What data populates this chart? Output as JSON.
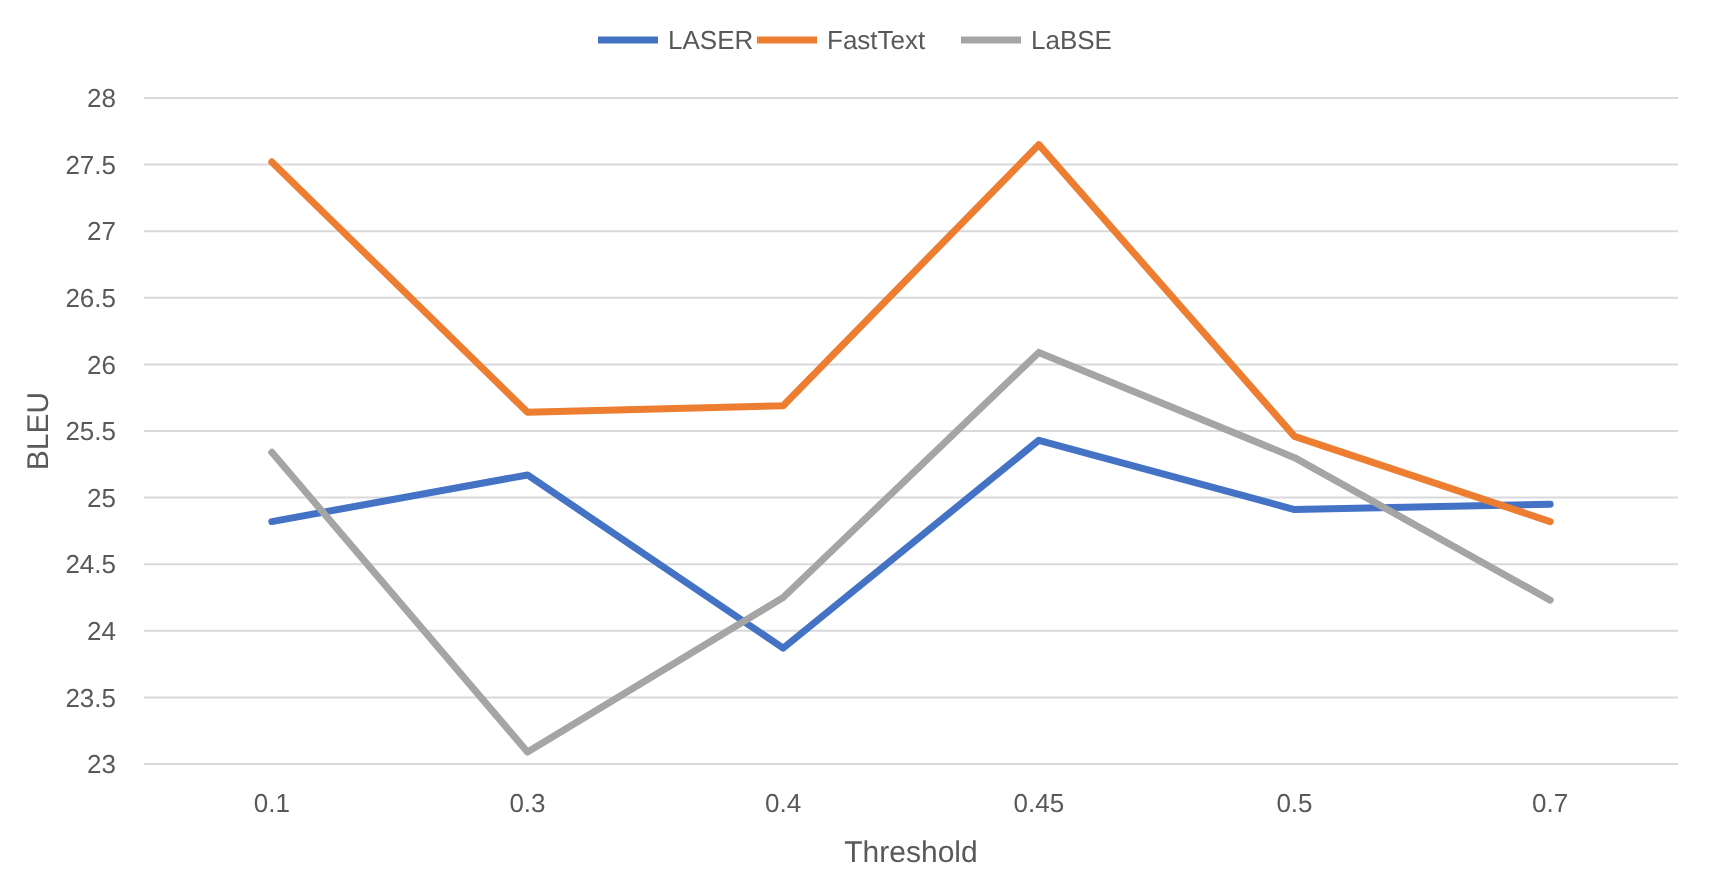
{
  "chart_data": {
    "type": "line",
    "xlabel": "Threshold",
    "ylabel": "BLEU",
    "categories": [
      "0.1",
      "0.3",
      "0.4",
      "0.45",
      "0.5",
      "0.7"
    ],
    "series": [
      {
        "name": "LASER",
        "color": "#4472c4",
        "values": [
          24.82,
          25.17,
          23.87,
          25.43,
          24.91,
          24.95
        ]
      },
      {
        "name": "FastText",
        "color": "#ed7d31",
        "values": [
          27.52,
          25.64,
          25.69,
          27.65,
          25.46,
          24.82
        ]
      },
      {
        "name": "LaBSE",
        "color": "#a5a5a5",
        "values": [
          25.34,
          23.09,
          24.25,
          26.09,
          25.3,
          24.23
        ]
      }
    ],
    "ylim": [
      23,
      28
    ],
    "yticks": [
      23,
      23.5,
      24,
      24.5,
      25,
      25.5,
      26,
      26.5,
      27,
      27.5,
      28
    ],
    "grid": "y",
    "legend": "top",
    "marker": "none",
    "line_style": "solid"
  }
}
